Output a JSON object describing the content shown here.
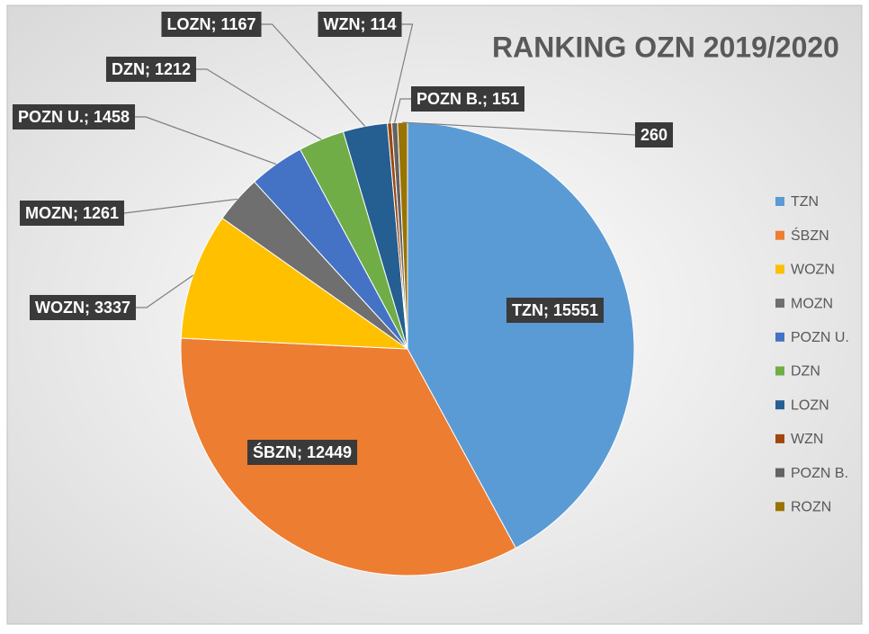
{
  "chart_data": {
    "type": "pie",
    "title": "RANKING OZN 2019/2020",
    "categories": [
      "TZN",
      "ŚBZN",
      "WOZN",
      "MOZN",
      "POZN U.",
      "DZN",
      "LOZN",
      "WZN",
      "POZN B.",
      "ROZN"
    ],
    "series": [
      {
        "values": [
          15551,
          12449,
          3337,
          1261,
          1458,
          1212,
          1167,
          114,
          151,
          260
        ],
        "value_labels": [
          "TZN; 15551",
          "ŚBZN; 12449",
          "WOZN; 3337",
          "MOZN; 1261",
          "POZN U.; 1458",
          "DZN; 1212",
          "LOZN; 1167",
          "WZN; 114",
          "POZN B.; 151",
          "260"
        ],
        "colors": [
          "#5b9bd5",
          "#ed7d31",
          "#ffc000",
          "#6f6f6f",
          "#4472c4",
          "#70ad47",
          "#255e91",
          "#9e480e",
          "#636363",
          "#997300"
        ]
      }
    ],
    "legend": "right"
  }
}
